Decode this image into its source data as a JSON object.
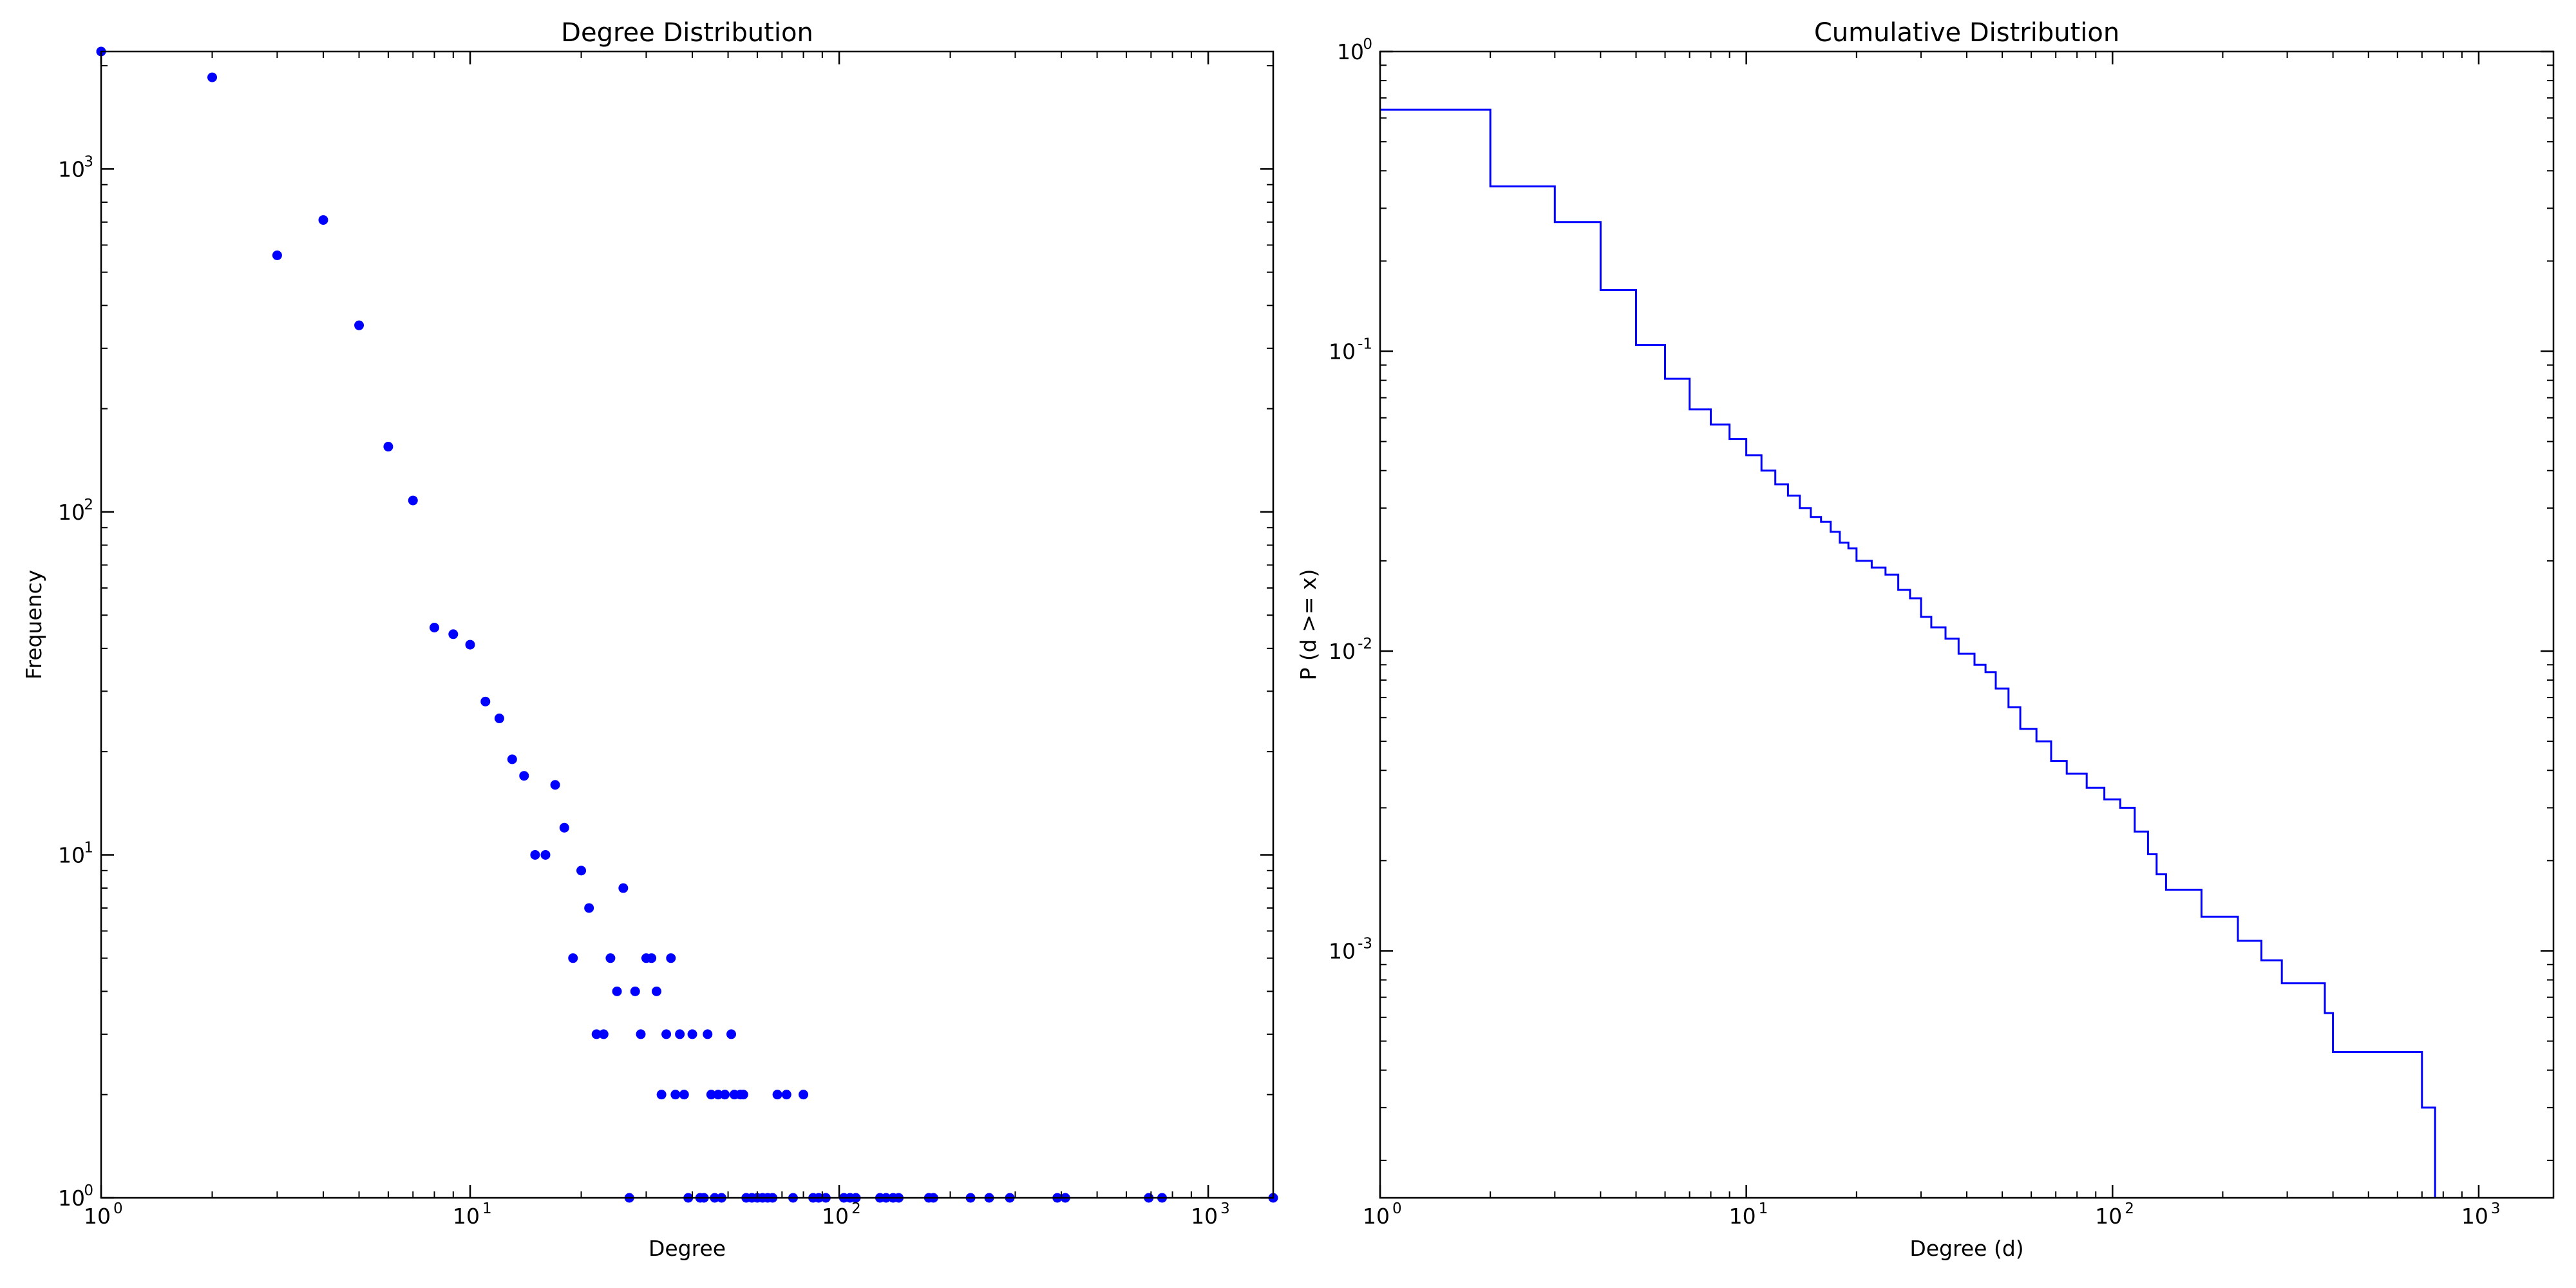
{
  "colors": {
    "marker": "#0000ff",
    "line": "#0000ff",
    "axes": "#000000",
    "background": "#ffffff"
  },
  "chart_data": [
    {
      "type": "scatter",
      "title": "Degree Distribution",
      "xlabel": "Degree",
      "ylabel": "Frequency",
      "xscale": "log",
      "yscale": "log",
      "xlim": [
        1,
        1500
      ],
      "ylim": [
        1,
        2200
      ],
      "grid": false,
      "xticks": [
        {
          "value": 1,
          "base": "10",
          "exp": "0"
        },
        {
          "value": 10,
          "base": "10",
          "exp": "1"
        },
        {
          "value": 100,
          "base": "10",
          "exp": "2"
        },
        {
          "value": 1000,
          "base": "10",
          "exp": "3"
        }
      ],
      "yticks": [
        {
          "value": 1,
          "base": "10",
          "exp": "0"
        },
        {
          "value": 10,
          "base": "10",
          "exp": "1"
        },
        {
          "value": 100,
          "base": "10",
          "exp": "2"
        },
        {
          "value": 1000,
          "base": "10",
          "exp": "3"
        }
      ],
      "points": [
        [
          1,
          2200
        ],
        [
          2,
          1850
        ],
        [
          3,
          560
        ],
        [
          4,
          710
        ],
        [
          5,
          350
        ],
        [
          6,
          155
        ],
        [
          7,
          108
        ],
        [
          8,
          46
        ],
        [
          9,
          44
        ],
        [
          10,
          41
        ],
        [
          11,
          28
        ],
        [
          12,
          25
        ],
        [
          13,
          19
        ],
        [
          14,
          17
        ],
        [
          15,
          10
        ],
        [
          16,
          10
        ],
        [
          17,
          16
        ],
        [
          18,
          12
        ],
        [
          19,
          5
        ],
        [
          20,
          9
        ],
        [
          21,
          7
        ],
        [
          22,
          3
        ],
        [
          23,
          3
        ],
        [
          24,
          5
        ],
        [
          25,
          4
        ],
        [
          26,
          8
        ],
        [
          28,
          4
        ],
        [
          29,
          3
        ],
        [
          30,
          5
        ],
        [
          31,
          5
        ],
        [
          32,
          4
        ],
        [
          33,
          2
        ],
        [
          34,
          3
        ],
        [
          35,
          5
        ],
        [
          36,
          2
        ],
        [
          37,
          3
        ],
        [
          38,
          2
        ],
        [
          40,
          3
        ],
        [
          44,
          3
        ],
        [
          45,
          2
        ],
        [
          47,
          2
        ],
        [
          49,
          2
        ],
        [
          51,
          3
        ],
        [
          52,
          2
        ],
        [
          54,
          2
        ],
        [
          55,
          2
        ],
        [
          68,
          2
        ],
        [
          72,
          2
        ],
        [
          80,
          2
        ],
        [
          27,
          1
        ],
        [
          39,
          1
        ],
        [
          42,
          1
        ],
        [
          43,
          1
        ],
        [
          46,
          1
        ],
        [
          48,
          1
        ],
        [
          56,
          1
        ],
        [
          58,
          1
        ],
        [
          60,
          1
        ],
        [
          62,
          1
        ],
        [
          64,
          1
        ],
        [
          66,
          1
        ],
        [
          75,
          1
        ],
        [
          85,
          1
        ],
        [
          88,
          1
        ],
        [
          92,
          1
        ],
        [
          103,
          1
        ],
        [
          107,
          1
        ],
        [
          111,
          1
        ],
        [
          129,
          1
        ],
        [
          134,
          1
        ],
        [
          140,
          1
        ],
        [
          145,
          1
        ],
        [
          175,
          1
        ],
        [
          180,
          1
        ],
        [
          227,
          1
        ],
        [
          255,
          1
        ],
        [
          290,
          1
        ],
        [
          390,
          1
        ],
        [
          410,
          1
        ],
        [
          690,
          1
        ],
        [
          750,
          1
        ],
        [
          1500,
          1
        ]
      ]
    },
    {
      "type": "line",
      "drawstyle": "steps",
      "title": "Cumulative Distribution",
      "xlabel": "Degree (d)",
      "ylabel": "P (d >= x)",
      "xscale": "log",
      "yscale": "log",
      "xlim": [
        1,
        1600
      ],
      "ylim": [
        0.00015,
        1
      ],
      "grid": false,
      "xticks": [
        {
          "value": 1,
          "base": "10",
          "exp": "0"
        },
        {
          "value": 10,
          "base": "10",
          "exp": "1"
        },
        {
          "value": 100,
          "base": "10",
          "exp": "2"
        },
        {
          "value": 1000,
          "base": "10",
          "exp": "3"
        }
      ],
      "yticks": [
        {
          "value": 0.001,
          "base": "10",
          "exp": "-3"
        },
        {
          "value": 0.01,
          "base": "10",
          "exp": "-2"
        },
        {
          "value": 0.1,
          "base": "10",
          "exp": "-1"
        },
        {
          "value": 1,
          "base": "10",
          "exp": "0"
        }
      ],
      "x": [
        1,
        2,
        3,
        4,
        5,
        6,
        7,
        8,
        9,
        10,
        11,
        12,
        13,
        14,
        15,
        16,
        17,
        18,
        19,
        20,
        22,
        24,
        26,
        28,
        30,
        32,
        35,
        38,
        42,
        45,
        48,
        52,
        56,
        62,
        68,
        75,
        85,
        95,
        105,
        115,
        125,
        132,
        140,
        175,
        220,
        255,
        290,
        380,
        400,
        700,
        760
      ],
      "y": [
        0.64,
        0.355,
        0.27,
        0.16,
        0.105,
        0.081,
        0.064,
        0.057,
        0.051,
        0.045,
        0.04,
        0.036,
        0.033,
        0.03,
        0.028,
        0.027,
        0.025,
        0.023,
        0.022,
        0.02,
        0.019,
        0.018,
        0.016,
        0.015,
        0.013,
        0.012,
        0.011,
        0.0098,
        0.009,
        0.0085,
        0.0075,
        0.0065,
        0.0055,
        0.005,
        0.0043,
        0.0039,
        0.0035,
        0.0032,
        0.003,
        0.0025,
        0.0021,
        0.0018,
        0.0016,
        0.0013,
        0.00108,
        0.00093,
        0.00078,
        0.00062,
        0.00046,
        0.0003,
        0.00015
      ]
    }
  ]
}
